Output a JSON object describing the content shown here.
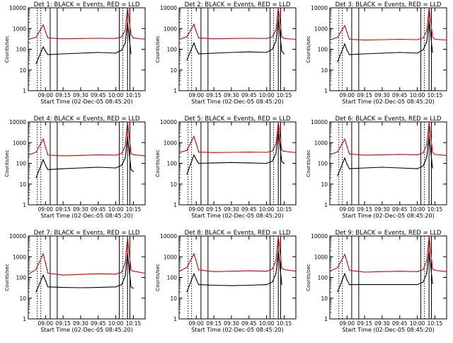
{
  "figure": {
    "x_axis_label": "Start Time (02-Dec-05 08:45:20)",
    "y_axis_label": "Counts/sec",
    "x_tick_labels": [
      "09:00",
      "09:15",
      "09:30",
      "09:45",
      "10:00",
      "10:15"
    ],
    "y_tick_labels": [
      "1",
      "10",
      "100",
      "1000",
      "10000"
    ]
  },
  "colors": {
    "events": "#000000",
    "lld": "#dd0000",
    "axes": "#000000"
  },
  "chart_data": [
    {
      "type": "line",
      "title": "Det 1: BLACK = Events, RED = LLD",
      "y_scale": "log",
      "ylim": [
        1,
        10000
      ],
      "xlim": [
        "08:45:20",
        "10:25"
      ],
      "x": [
        "08:45:20",
        "08:52",
        "08:58",
        "09:00",
        "09:02",
        "09:15",
        "09:30",
        "09:45",
        "10:00",
        "10:05",
        "10:08",
        "10:10",
        "10:13",
        "10:15",
        "10:25"
      ],
      "series": [
        {
          "name": "Events",
          "values": [
            null,
            20,
            130,
            80,
            55,
            60,
            65,
            70,
            65,
            90,
            200,
            2000,
            60,
            null,
            null
          ]
        },
        {
          "name": "LLD",
          "values": [
            300,
            380,
            1500,
            700,
            350,
            320,
            330,
            340,
            330,
            400,
            800,
            10000,
            500,
            350,
            300
          ]
        }
      ],
      "markers": [
        "08:53",
        "08:56",
        "09:04",
        "09:10",
        "10:03",
        "10:06",
        "10:10",
        "10:12"
      ]
    },
    {
      "type": "line",
      "title": "Det 2: BLACK = Events, RED = LLD",
      "y_scale": "log",
      "ylim": [
        1,
        10000
      ],
      "xlim": [
        "08:45:20",
        "10:25"
      ],
      "x": [
        "08:45:20",
        "08:52",
        "08:58",
        "09:00",
        "09:02",
        "09:15",
        "09:30",
        "09:45",
        "10:00",
        "10:05",
        "10:08",
        "10:10",
        "10:13",
        "10:15",
        "10:25"
      ],
      "series": [
        {
          "name": "Events",
          "values": [
            null,
            30,
            200,
            100,
            60,
            65,
            70,
            75,
            70,
            100,
            250,
            3000,
            80,
            60,
            null
          ]
        },
        {
          "name": "LLD",
          "values": [
            300,
            400,
            1600,
            700,
            350,
            320,
            330,
            340,
            330,
            400,
            900,
            10000,
            400,
            330,
            300
          ]
        }
      ],
      "markers": [
        "08:53",
        "08:56",
        "09:04",
        "09:10",
        "10:03",
        "10:06",
        "10:10",
        "10:12"
      ]
    },
    {
      "type": "line",
      "title": "Det 3: BLACK = Events, RED = LLD",
      "y_scale": "log",
      "ylim": [
        1,
        10000
      ],
      "xlim": [
        "08:45:20",
        "10:25"
      ],
      "x": [
        "08:45:20",
        "08:52",
        "08:58",
        "09:00",
        "09:02",
        "09:15",
        "09:30",
        "09:45",
        "10:00",
        "10:05",
        "10:08",
        "10:10",
        "10:13",
        "10:15",
        "10:25"
      ],
      "series": [
        {
          "name": "Events",
          "values": [
            null,
            25,
            180,
            90,
            55,
            60,
            65,
            70,
            65,
            95,
            230,
            2500,
            70,
            null,
            null
          ]
        },
        {
          "name": "LLD",
          "values": [
            280,
            380,
            1400,
            650,
            300,
            280,
            290,
            300,
            290,
            350,
            800,
            10000,
            400,
            300,
            280
          ]
        }
      ],
      "markers": [
        "08:53",
        "08:56",
        "09:04",
        "09:10",
        "10:03",
        "10:06",
        "10:10",
        "10:12"
      ]
    },
    {
      "type": "line",
      "title": "Det 4: BLACK = Events, RED = LLD",
      "y_scale": "log",
      "ylim": [
        1,
        10000
      ],
      "xlim": [
        "08:45:20",
        "10:25"
      ],
      "x": [
        "08:45:20",
        "08:52",
        "08:58",
        "09:00",
        "09:02",
        "09:15",
        "09:30",
        "09:45",
        "10:00",
        "10:05",
        "10:08",
        "10:10",
        "10:13",
        "10:15",
        "10:25"
      ],
      "series": [
        {
          "name": "Events",
          "values": [
            null,
            20,
            150,
            80,
            50,
            55,
            60,
            65,
            60,
            80,
            180,
            2000,
            50,
            40,
            null
          ]
        },
        {
          "name": "LLD",
          "values": [
            250,
            350,
            1500,
            600,
            250,
            230,
            240,
            260,
            250,
            300,
            700,
            10000,
            300,
            260,
            230
          ]
        }
      ],
      "markers": [
        "08:53",
        "08:56",
        "09:04",
        "09:10",
        "10:03",
        "10:06",
        "10:10",
        "10:12"
      ]
    },
    {
      "type": "line",
      "title": "Det 5: BLACK = Events, RED = LLD",
      "y_scale": "log",
      "ylim": [
        1,
        10000
      ],
      "xlim": [
        "08:45:20",
        "10:25"
      ],
      "x": [
        "08:45:20",
        "08:52",
        "08:58",
        "09:00",
        "09:02",
        "09:15",
        "09:30",
        "09:45",
        "10:00",
        "10:05",
        "10:08",
        "10:10",
        "10:13",
        "10:15",
        "10:25"
      ],
      "series": [
        {
          "name": "Events",
          "values": [
            null,
            30,
            250,
            150,
            100,
            105,
            110,
            105,
            100,
            130,
            300,
            3500,
            120,
            100,
            null
          ]
        },
        {
          "name": "LLD",
          "values": [
            330,
            420,
            2000,
            900,
            350,
            330,
            340,
            350,
            340,
            400,
            900,
            10000,
            420,
            380,
            330
          ]
        }
      ],
      "markers": [
        "08:53",
        "08:56",
        "09:04",
        "09:10",
        "10:03",
        "10:06",
        "10:10",
        "10:12"
      ]
    },
    {
      "type": "line",
      "title": "Det 6: BLACK = Events, RED = LLD",
      "y_scale": "log",
      "ylim": [
        1,
        10000
      ],
      "xlim": [
        "08:45:20",
        "10:25"
      ],
      "x": [
        "08:45:20",
        "08:52",
        "08:58",
        "09:00",
        "09:02",
        "09:15",
        "09:30",
        "09:45",
        "10:00",
        "10:05",
        "10:08",
        "10:10",
        "10:13",
        "10:15",
        "10:25"
      ],
      "series": [
        {
          "name": "Events",
          "values": [
            null,
            25,
            180,
            90,
            55,
            60,
            65,
            60,
            55,
            75,
            200,
            2200,
            60,
            null,
            null
          ]
        },
        {
          "name": "LLD",
          "values": [
            260,
            360,
            1500,
            650,
            280,
            250,
            260,
            270,
            260,
            320,
            800,
            10000,
            350,
            270,
            240
          ]
        }
      ],
      "markers": [
        "08:53",
        "08:56",
        "09:04",
        "09:10",
        "10:03",
        "10:06",
        "10:10",
        "10:12"
      ]
    },
    {
      "type": "line",
      "title": "Det 7: BLACK = Events, RED = LLD",
      "y_scale": "log",
      "ylim": [
        1,
        10000
      ],
      "xlim": [
        "08:45:20",
        "10:25"
      ],
      "x": [
        "08:45:20",
        "08:52",
        "08:58",
        "09:00",
        "09:02",
        "09:15",
        "09:30",
        "09:45",
        "10:00",
        "10:05",
        "10:08",
        "10:10",
        "10:13",
        "10:15",
        "10:25"
      ],
      "series": [
        {
          "name": "Events",
          "values": [
            null,
            20,
            130,
            70,
            35,
            33,
            32,
            33,
            35,
            45,
            120,
            1500,
            35,
            30,
            null
          ]
        },
        {
          "name": "LLD",
          "values": [
            140,
            250,
            1400,
            500,
            160,
            130,
            140,
            150,
            145,
            180,
            500,
            8000,
            230,
            200,
            160
          ]
        }
      ],
      "markers": [
        "08:53",
        "08:56",
        "09:04",
        "09:10",
        "10:03",
        "10:06",
        "10:10",
        "10:12"
      ]
    },
    {
      "type": "line",
      "title": "Det 8: BLACK = Events, RED = LLD",
      "y_scale": "log",
      "ylim": [
        1,
        10000
      ],
      "xlim": [
        "08:45:20",
        "10:25"
      ],
      "x": [
        "08:45:20",
        "08:52",
        "08:58",
        "09:00",
        "09:02",
        "09:15",
        "09:30",
        "09:45",
        "10:00",
        "10:05",
        "10:08",
        "10:10",
        "10:13",
        "10:15",
        "10:25"
      ],
      "series": [
        {
          "name": "Events",
          "values": [
            null,
            20,
            150,
            80,
            45,
            42,
            40,
            42,
            45,
            60,
            160,
            2000,
            45,
            null,
            null
          ]
        },
        {
          "name": "LLD",
          "values": [
            200,
            300,
            1400,
            600,
            230,
            190,
            200,
            210,
            200,
            250,
            700,
            10000,
            280,
            240,
            200
          ]
        }
      ],
      "markers": [
        "08:53",
        "08:56",
        "09:04",
        "09:10",
        "10:03",
        "10:06",
        "10:10",
        "10:12"
      ]
    },
    {
      "type": "line",
      "title": "Det 9: BLACK = Events, RED = LLD",
      "y_scale": "log",
      "ylim": [
        1,
        10000
      ],
      "xlim": [
        "08:45:20",
        "10:25"
      ],
      "x": [
        "08:45:20",
        "08:52",
        "08:58",
        "09:00",
        "09:02",
        "09:15",
        "09:30",
        "09:45",
        "10:00",
        "10:05",
        "10:08",
        "10:10",
        "10:13",
        "10:15",
        "10:25"
      ],
      "series": [
        {
          "name": "Events",
          "values": [
            null,
            20,
            150,
            75,
            45,
            45,
            45,
            45,
            45,
            60,
            160,
            2000,
            50,
            null,
            null
          ]
        },
        {
          "name": "LLD",
          "values": [
            200,
            300,
            1300,
            550,
            220,
            180,
            190,
            200,
            190,
            240,
            650,
            10000,
            260,
            220,
            190
          ]
        }
      ],
      "markers": [
        "08:53",
        "08:56",
        "09:04",
        "09:10",
        "10:03",
        "10:06",
        "10:10",
        "10:12"
      ]
    }
  ]
}
